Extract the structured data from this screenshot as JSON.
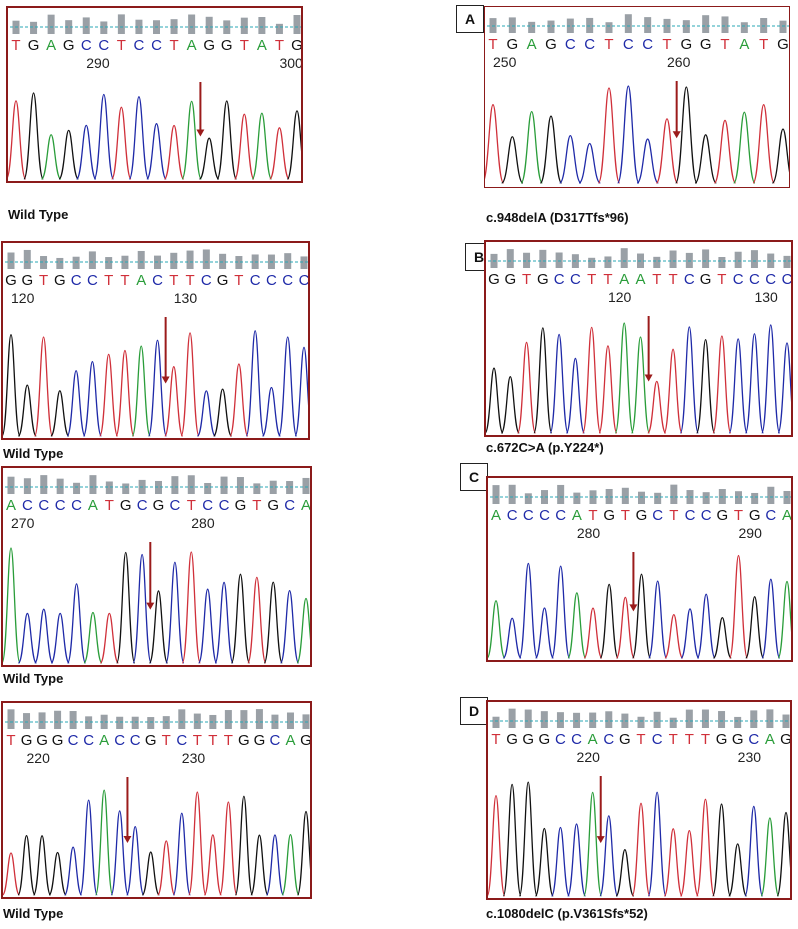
{
  "colors": {
    "A": "#2a9d3a",
    "C": "#1f2aa8",
    "G": "#111111",
    "T": "#d0303a",
    "arrow": "#9b1b1b",
    "frame": "#8b1a1a",
    "qbar": "#9aa0a6",
    "dash": "#2aa7b5"
  },
  "panels": [
    {
      "id": "wt1",
      "seq": "TGAGCCTCCTAGGTATG",
      "num1": "290",
      "num2": "300",
      "caption": "Wild Type",
      "letter": ""
    },
    {
      "id": "mutA",
      "seq": "TGAGCCTCCTGGTATG",
      "num1": "250",
      "num2": "260",
      "caption": "c.948delA (D317Tfs*96)",
      "letter": "A"
    },
    {
      "id": "wt2",
      "seq": "GGTGCCTTACTTCGTCCCC",
      "num1": "120",
      "num2": "130",
      "caption": "Wild Type",
      "letter": ""
    },
    {
      "id": "mutB",
      "seq": "GGTGCCTTAATTCGTCCCC",
      "num1": "120",
      "num2": "130",
      "caption": "c.672C>A (p.Y224*)",
      "letter": "B"
    },
    {
      "id": "wt3",
      "seq": "ACCCCATGCGCTCCGTGCA",
      "num1": "270",
      "num2": "280",
      "caption": "Wild Type",
      "letter": ""
    },
    {
      "id": "mutC",
      "seq": "ACCCCATGTGCTCCGTGCA",
      "num1": "280",
      "num2": "290",
      "caption": "",
      "letter": "C"
    },
    {
      "id": "wt4",
      "seq": "TGGGCCACCGTCTTTGGCAG",
      "num1": "220",
      "num2": "230",
      "caption": "Wild Type",
      "letter": ""
    },
    {
      "id": "mutD",
      "seq": "TGGGCCACGTCTTTGGCAG",
      "num1": "220",
      "num2": "230",
      "caption": "c.1080delC (p.V361Sfs*52)",
      "letter": "D"
    }
  ]
}
